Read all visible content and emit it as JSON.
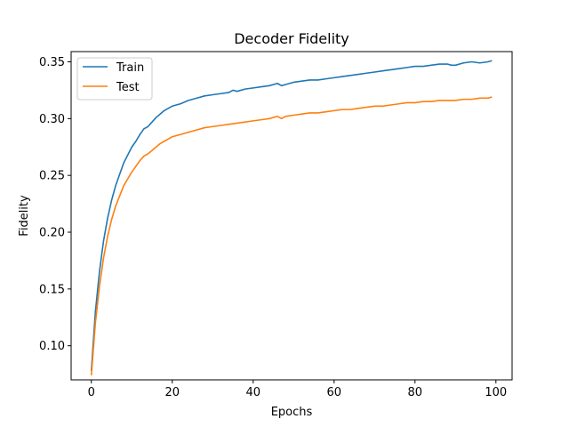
{
  "chart_data": {
    "type": "line",
    "title": "Decoder Fidelity",
    "xlabel": "Epochs",
    "ylabel": "Fidelity",
    "xlim": [
      -5,
      104
    ],
    "ylim": [
      0.07,
      0.359
    ],
    "xticks": [
      0,
      20,
      40,
      60,
      80,
      100
    ],
    "yticks": [
      0.1,
      0.15,
      0.2,
      0.25,
      0.3,
      0.35
    ],
    "ytick_labels": [
      "0.10",
      "0.15",
      "0.20",
      "0.25",
      "0.30",
      "0.35"
    ],
    "grid": false,
    "legend_position": "top-left",
    "series": [
      {
        "name": "Train",
        "color": "#1f77b4",
        "points": [
          [
            0,
            0.078
          ],
          [
            1,
            0.13
          ],
          [
            2,
            0.165
          ],
          [
            3,
            0.192
          ],
          [
            4,
            0.212
          ],
          [
            5,
            0.228
          ],
          [
            6,
            0.241
          ],
          [
            7,
            0.251
          ],
          [
            8,
            0.261
          ],
          [
            9,
            0.268
          ],
          [
            10,
            0.275
          ],
          [
            11,
            0.28
          ],
          [
            12,
            0.286
          ],
          [
            13,
            0.291
          ],
          [
            14,
            0.293
          ],
          [
            15,
            0.297
          ],
          [
            16,
            0.301
          ],
          [
            17,
            0.304
          ],
          [
            18,
            0.307
          ],
          [
            19,
            0.309
          ],
          [
            20,
            0.311
          ],
          [
            22,
            0.313
          ],
          [
            24,
            0.316
          ],
          [
            26,
            0.318
          ],
          [
            28,
            0.32
          ],
          [
            30,
            0.321
          ],
          [
            32,
            0.322
          ],
          [
            34,
            0.323
          ],
          [
            35,
            0.325
          ],
          [
            36,
            0.324
          ],
          [
            38,
            0.326
          ],
          [
            40,
            0.327
          ],
          [
            42,
            0.328
          ],
          [
            44,
            0.329
          ],
          [
            46,
            0.331
          ],
          [
            47,
            0.329
          ],
          [
            48,
            0.33
          ],
          [
            50,
            0.332
          ],
          [
            52,
            0.333
          ],
          [
            54,
            0.334
          ],
          [
            56,
            0.334
          ],
          [
            58,
            0.335
          ],
          [
            60,
            0.336
          ],
          [
            62,
            0.337
          ],
          [
            64,
            0.338
          ],
          [
            66,
            0.339
          ],
          [
            68,
            0.34
          ],
          [
            70,
            0.341
          ],
          [
            72,
            0.342
          ],
          [
            74,
            0.343
          ],
          [
            76,
            0.344
          ],
          [
            78,
            0.345
          ],
          [
            80,
            0.346
          ],
          [
            82,
            0.346
          ],
          [
            84,
            0.347
          ],
          [
            86,
            0.348
          ],
          [
            88,
            0.348
          ],
          [
            89,
            0.347
          ],
          [
            90,
            0.347
          ],
          [
            92,
            0.349
          ],
          [
            94,
            0.35
          ],
          [
            96,
            0.349
          ],
          [
            98,
            0.35
          ],
          [
            99,
            0.351
          ]
        ]
      },
      {
        "name": "Test",
        "color": "#ff7f0e",
        "points": [
          [
            0,
            0.074
          ],
          [
            1,
            0.12
          ],
          [
            2,
            0.152
          ],
          [
            3,
            0.177
          ],
          [
            4,
            0.196
          ],
          [
            5,
            0.211
          ],
          [
            6,
            0.223
          ],
          [
            7,
            0.232
          ],
          [
            8,
            0.241
          ],
          [
            9,
            0.247
          ],
          [
            10,
            0.253
          ],
          [
            11,
            0.258
          ],
          [
            12,
            0.263
          ],
          [
            13,
            0.267
          ],
          [
            14,
            0.269
          ],
          [
            15,
            0.272
          ],
          [
            16,
            0.275
          ],
          [
            17,
            0.278
          ],
          [
            18,
            0.28
          ],
          [
            19,
            0.282
          ],
          [
            20,
            0.284
          ],
          [
            22,
            0.286
          ],
          [
            24,
            0.288
          ],
          [
            26,
            0.29
          ],
          [
            28,
            0.292
          ],
          [
            30,
            0.293
          ],
          [
            32,
            0.294
          ],
          [
            34,
            0.295
          ],
          [
            36,
            0.296
          ],
          [
            38,
            0.297
          ],
          [
            40,
            0.298
          ],
          [
            42,
            0.299
          ],
          [
            44,
            0.3
          ],
          [
            46,
            0.302
          ],
          [
            47,
            0.3
          ],
          [
            48,
            0.302
          ],
          [
            50,
            0.303
          ],
          [
            52,
            0.304
          ],
          [
            54,
            0.305
          ],
          [
            56,
            0.305
          ],
          [
            58,
            0.306
          ],
          [
            60,
            0.307
          ],
          [
            62,
            0.308
          ],
          [
            64,
            0.308
          ],
          [
            66,
            0.309
          ],
          [
            68,
            0.31
          ],
          [
            70,
            0.311
          ],
          [
            72,
            0.311
          ],
          [
            74,
            0.312
          ],
          [
            76,
            0.313
          ],
          [
            78,
            0.314
          ],
          [
            80,
            0.314
          ],
          [
            82,
            0.315
          ],
          [
            84,
            0.315
          ],
          [
            86,
            0.316
          ],
          [
            88,
            0.316
          ],
          [
            90,
            0.316
          ],
          [
            92,
            0.317
          ],
          [
            94,
            0.317
          ],
          [
            96,
            0.318
          ],
          [
            98,
            0.318
          ],
          [
            99,
            0.319
          ]
        ]
      }
    ]
  }
}
